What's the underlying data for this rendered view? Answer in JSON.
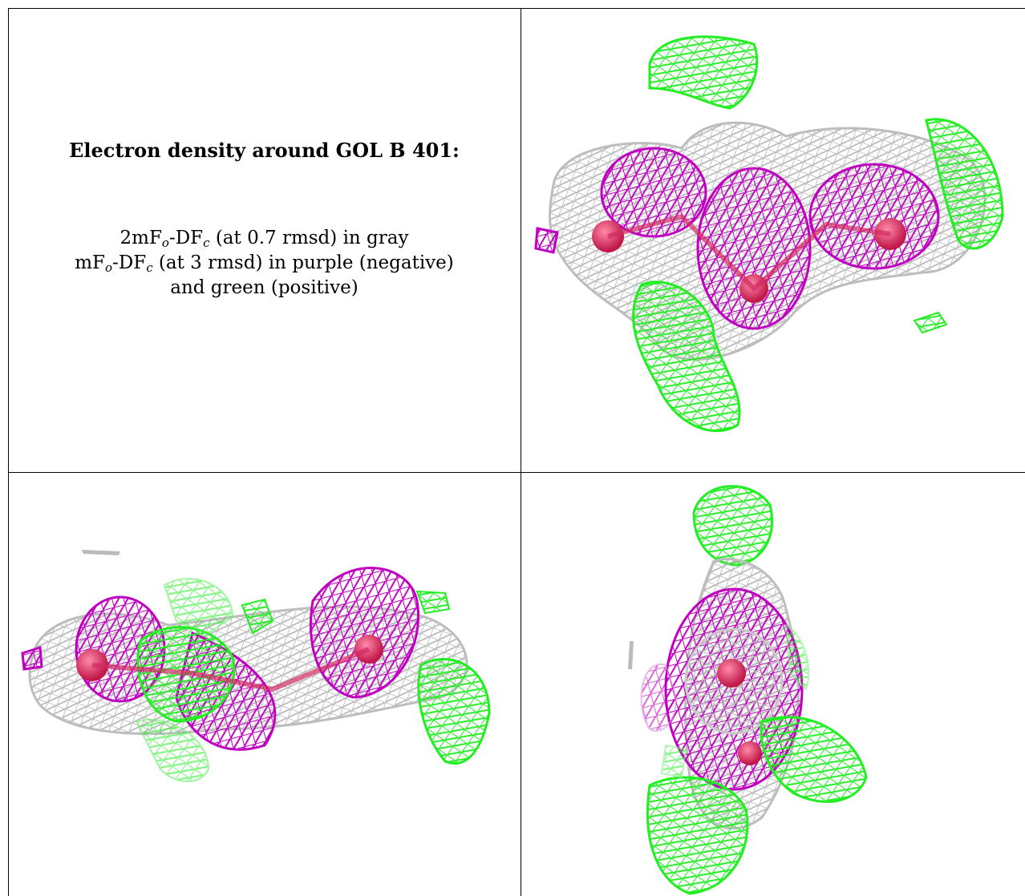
{
  "caption": {
    "title": "Electron density around GOL B 401:",
    "line1": {
      "a": "2mF",
      "b": "o",
      "c": "-DF",
      "d": "c",
      "e": " (at 0.7 rmsd) in gray"
    },
    "line2": {
      "a": "mF",
      "b": "o",
      "c": "-DF",
      "d": "c",
      "e": " (at 3 rmsd) in purple (negative)"
    },
    "line3": "and green (positive)"
  },
  "colors": {
    "gray_mesh": "#b4b4b4",
    "purple_mesh": "#c000c0",
    "green_mesh": "#22ee22",
    "atom": "#e0305a"
  },
  "views": [
    {
      "name": "view-top-right",
      "icon": "electron-density-mesh-view-1"
    },
    {
      "name": "view-bottom-left",
      "icon": "electron-density-mesh-view-2"
    },
    {
      "name": "view-bottom-right",
      "icon": "electron-density-mesh-view-3"
    }
  ]
}
